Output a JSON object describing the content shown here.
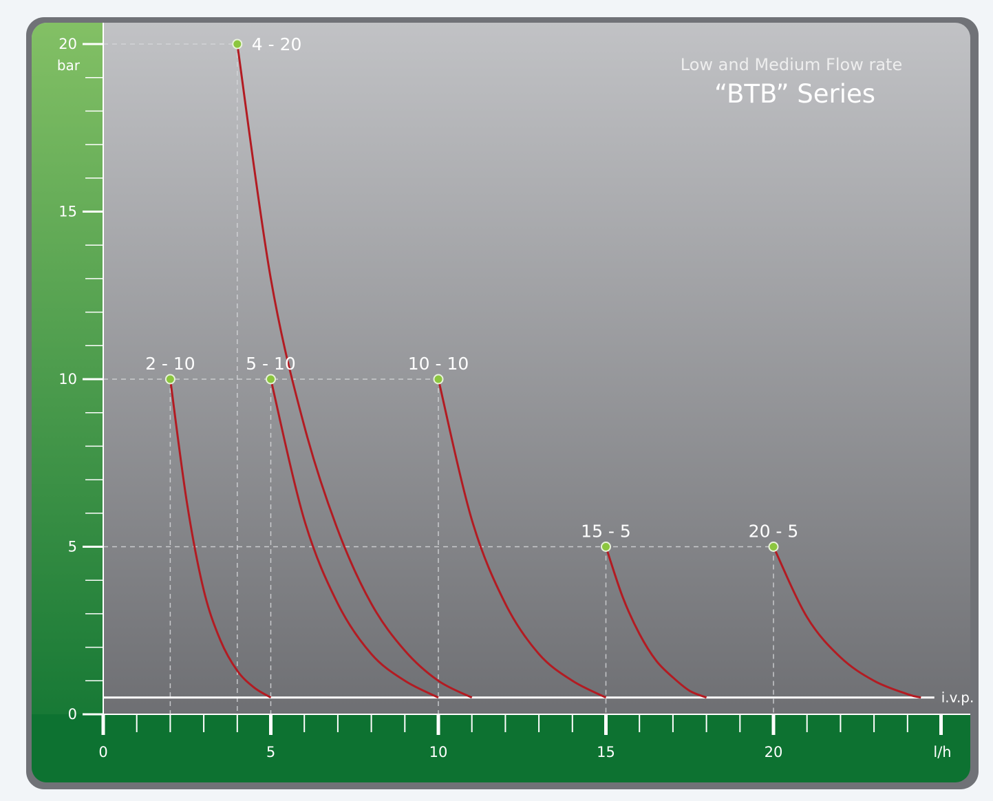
{
  "chart_data": {
    "type": "line",
    "title": "Low and Medium Flow rate",
    "subtitle": "“BTB” Series",
    "xlabel": "l/h",
    "ylabel": "bar",
    "xlim": [
      0,
      25
    ],
    "ylim": [
      0,
      20
    ],
    "x_ticks": [
      0,
      5,
      10,
      15,
      20
    ],
    "y_ticks": [
      0,
      5,
      10,
      15,
      20
    ],
    "baseline_label": "i.v.p.",
    "baseline_value": 0.5,
    "grid": "dashed guide lines to each rated point",
    "series": [
      {
        "name": "2 - 10",
        "rated_flow": 2,
        "rated_pressure": 10,
        "x": [
          2,
          2.5,
          3,
          3.5,
          4,
          4.5,
          5
        ],
        "y": [
          10,
          6.3,
          3.7,
          2.2,
          1.3,
          0.8,
          0.5
        ]
      },
      {
        "name": "4 - 20",
        "rated_flow": 4,
        "rated_pressure": 20,
        "x": [
          4,
          5,
          6,
          7,
          8,
          9,
          10,
          11
        ],
        "y": [
          20,
          13,
          8.6,
          5.5,
          3.3,
          1.9,
          1.0,
          0.5
        ]
      },
      {
        "name": "5 - 10",
        "rated_flow": 5,
        "rated_pressure": 10,
        "x": [
          5,
          6,
          7,
          8,
          9,
          10
        ],
        "y": [
          10,
          5.8,
          3.3,
          1.8,
          1.0,
          0.5
        ]
      },
      {
        "name": "10 - 10",
        "rated_flow": 10,
        "rated_pressure": 10,
        "x": [
          10,
          11,
          12,
          13,
          14,
          15
        ],
        "y": [
          10,
          5.8,
          3.3,
          1.8,
          1.0,
          0.5
        ]
      },
      {
        "name": "15 - 5",
        "rated_flow": 15,
        "rated_pressure": 5,
        "x": [
          15,
          15.5,
          16,
          16.5,
          17,
          17.5,
          18
        ],
        "y": [
          5,
          3.5,
          2.4,
          1.6,
          1.1,
          0.7,
          0.5
        ]
      },
      {
        "name": "20 - 5",
        "rated_flow": 20,
        "rated_pressure": 5,
        "x": [
          20,
          21,
          22,
          23,
          24,
          24.4
        ],
        "y": [
          5,
          2.9,
          1.7,
          1.0,
          0.6,
          0.5
        ]
      }
    ],
    "colors": {
      "curve": "#b31b22",
      "marker_fill": "#8cc63f",
      "marker_stroke": "#e9f3dc",
      "axis_green_light": "#83c065",
      "axis_green_dark": "#0d7231",
      "plot_top": "#c1c2c5",
      "plot_bottom": "#66676b",
      "baseline": "#ffffff"
    }
  }
}
